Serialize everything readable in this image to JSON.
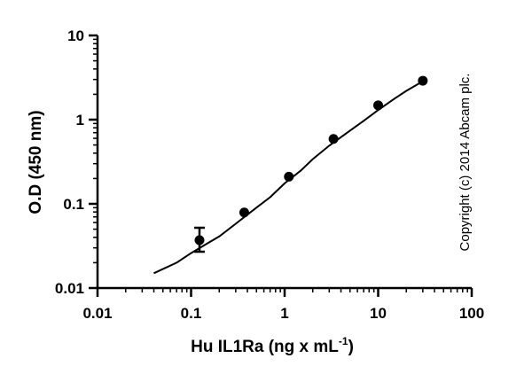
{
  "chart_data": {
    "type": "scatter",
    "xlabel": "Hu IL1Ra (ng x mL",
    "xlabel_sup": "-1",
    "xlabel_suffix": ")",
    "ylabel": "O.D (450 nm)",
    "x_scale": "log",
    "y_scale": "log",
    "xlim": [
      0.01,
      100
    ],
    "ylim": [
      0.01,
      10
    ],
    "x_ticks": [
      0.01,
      0.1,
      1,
      10,
      100
    ],
    "x_tick_labels": [
      "0.01",
      "0.1",
      "1",
      "10",
      "100"
    ],
    "y_ticks": [
      0.01,
      0.1,
      1,
      10
    ],
    "y_tick_labels": [
      "0.01",
      "0.1",
      "1",
      "10"
    ],
    "grid": false,
    "points": [
      {
        "x": 0.123,
        "y": 0.037,
        "err_low": 0.027,
        "err_high": 0.052
      },
      {
        "x": 0.37,
        "y": 0.079
      },
      {
        "x": 1.11,
        "y": 0.21
      },
      {
        "x": 3.33,
        "y": 0.59
      },
      {
        "x": 10,
        "y": 1.48
      },
      {
        "x": 30,
        "y": 2.9
      }
    ],
    "fit_curve": {
      "x": [
        0.04,
        0.07,
        0.1,
        0.15,
        0.2,
        0.3,
        0.5,
        0.7,
        1,
        1.5,
        2,
        3,
        5,
        7,
        10,
        15,
        20,
        30
      ],
      "y": [
        0.015,
        0.02,
        0.026,
        0.034,
        0.041,
        0.058,
        0.09,
        0.12,
        0.175,
        0.25,
        0.34,
        0.49,
        0.74,
        0.97,
        1.3,
        1.78,
        2.2,
        2.85
      ]
    },
    "annotation": "Copyright (c) 2014 Abcam plc."
  }
}
